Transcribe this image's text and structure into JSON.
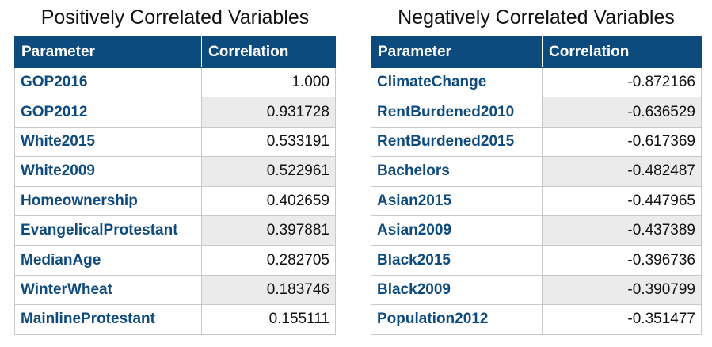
{
  "chart_data": [
    {
      "type": "table",
      "title": "Positively Correlated Variables",
      "columns": [
        "Parameter",
        "Correlation"
      ],
      "rows": [
        {
          "parameter": "GOP2016",
          "correlation": "1.000"
        },
        {
          "parameter": "GOP2012",
          "correlation": "0.931728"
        },
        {
          "parameter": "White2015",
          "correlation": "0.533191"
        },
        {
          "parameter": "White2009",
          "correlation": "0.522961"
        },
        {
          "parameter": "Homeownership",
          "correlation": "0.402659"
        },
        {
          "parameter": "EvangelicalProtestant",
          "correlation": "0.397881"
        },
        {
          "parameter": "MedianAge",
          "correlation": "0.282705"
        },
        {
          "parameter": "WinterWheat",
          "correlation": "0.183746"
        },
        {
          "parameter": "MainlineProtestant",
          "correlation": "0.155111"
        }
      ]
    },
    {
      "type": "table",
      "title": "Negatively Correlated Variables",
      "columns": [
        "Parameter",
        "Correlation"
      ],
      "rows": [
        {
          "parameter": "ClimateChange",
          "correlation": "-0.872166"
        },
        {
          "parameter": "RentBurdened2010",
          "correlation": "-0.636529"
        },
        {
          "parameter": "RentBurdened2015",
          "correlation": "-0.617369"
        },
        {
          "parameter": "Bachelors",
          "correlation": "-0.482487"
        },
        {
          "parameter": "Asian2015",
          "correlation": "-0.447965"
        },
        {
          "parameter": "Asian2009",
          "correlation": "-0.437389"
        },
        {
          "parameter": "Black2015",
          "correlation": "-0.396736"
        },
        {
          "parameter": "Black2009",
          "correlation": "-0.390799"
        },
        {
          "parameter": "Population2012",
          "correlation": "-0.351477"
        }
      ]
    }
  ],
  "colors": {
    "header_bg": "#0d4a7d",
    "header_text": "#ffffff",
    "param_text": "#0d4a7d",
    "stripe_bg": "#ebebeb"
  }
}
